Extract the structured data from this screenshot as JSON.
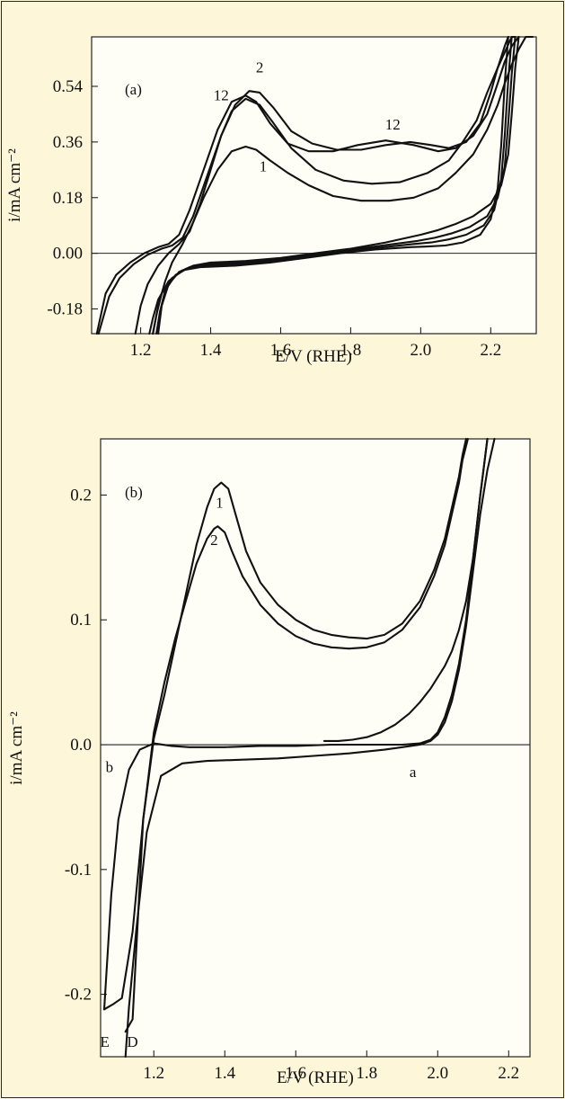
{
  "chart_data": [
    {
      "type": "line",
      "panel_label": "(a)",
      "xlabel": "E/V (RHE)",
      "ylabel": "i/mA cm⁻²",
      "xlim": [
        1.06,
        2.33
      ],
      "ylim": [
        -0.26,
        0.7
      ],
      "xticks": [
        1.2,
        1.4,
        1.6,
        1.8,
        2.0,
        2.2
      ],
      "xtick_labels": [
        "1.2",
        "1.4",
        "1.6",
        "1.8",
        "2.0",
        "2.2"
      ],
      "yticks": [
        -0.18,
        0.0,
        0.18,
        0.36,
        0.54
      ],
      "ytick_labels": [
        "-0.18",
        "0.00",
        "0.18",
        "0.36",
        "0.54"
      ],
      "zero_line": 0.0,
      "annotations": [
        {
          "text": "2",
          "x": 1.54,
          "y": 0.585
        },
        {
          "text": "12",
          "x": 1.43,
          "y": 0.495
        },
        {
          "text": "12",
          "x": 1.92,
          "y": 0.4
        },
        {
          "text": "1",
          "x": 1.55,
          "y": 0.265
        }
      ],
      "series": [
        {
          "x": [
            1.075,
            1.1,
            1.13,
            1.17,
            1.21,
            1.25,
            1.28,
            1.31,
            1.34,
            1.38,
            1.42,
            1.46,
            1.5,
            1.53,
            1.57,
            1.62,
            1.68,
            1.75,
            1.82,
            1.9,
            1.98,
            2.05,
            2.1,
            2.15,
            2.19,
            2.22,
            2.24,
            2.26,
            2.28
          ],
          "y": [
            -0.26,
            -0.13,
            -0.07,
            -0.03,
            0.0,
            0.02,
            0.03,
            0.06,
            0.14,
            0.27,
            0.4,
            0.49,
            0.51,
            0.49,
            0.42,
            0.355,
            0.33,
            0.33,
            0.35,
            0.365,
            0.35,
            0.33,
            0.34,
            0.38,
            0.45,
            0.55,
            0.62,
            0.67,
            0.72
          ]
        },
        {
          "x": [
            1.08,
            1.11,
            1.14,
            1.18,
            1.22,
            1.26,
            1.29,
            1.32,
            1.35,
            1.39,
            1.43,
            1.47,
            1.51,
            1.54,
            1.58,
            1.63,
            1.69,
            1.76,
            1.83,
            1.9,
            1.97,
            2.03,
            2.08,
            2.13,
            2.17,
            2.2,
            2.22,
            2.24,
            2.25
          ],
          "y": [
            -0.26,
            -0.14,
            -0.08,
            -0.035,
            -0.005,
            0.015,
            0.025,
            0.05,
            0.12,
            0.25,
            0.38,
            0.48,
            0.525,
            0.52,
            0.47,
            0.395,
            0.355,
            0.335,
            0.335,
            0.35,
            0.36,
            0.35,
            0.34,
            0.36,
            0.42,
            0.52,
            0.6,
            0.67,
            0.72
          ]
        },
        {
          "x": [
            1.185,
            1.2,
            1.22,
            1.25,
            1.28,
            1.31,
            1.34,
            1.37,
            1.4,
            1.43,
            1.46,
            1.5,
            1.54,
            1.58,
            1.63,
            1.7,
            1.78,
            1.86,
            1.94,
            2.02,
            2.08,
            2.12,
            2.16,
            2.19,
            2.22,
            2.24,
            2.26,
            2.27
          ],
          "y": [
            -0.26,
            -0.17,
            -0.1,
            -0.04,
            0.0,
            0.03,
            0.07,
            0.16,
            0.27,
            0.38,
            0.46,
            0.5,
            0.48,
            0.42,
            0.34,
            0.27,
            0.235,
            0.225,
            0.23,
            0.26,
            0.3,
            0.36,
            0.43,
            0.52,
            0.6,
            0.65,
            0.7,
            0.72
          ]
        },
        {
          "x": [
            1.235,
            1.25,
            1.27,
            1.29,
            1.32,
            1.35,
            1.38,
            1.42,
            1.46,
            1.5,
            1.53,
            1.57,
            1.62,
            1.68,
            1.75,
            1.83,
            1.91,
            1.98,
            2.05,
            2.1,
            2.15,
            2.19,
            2.22,
            2.24,
            2.26,
            2.28,
            2.3,
            2.32
          ],
          "y": [
            -0.26,
            -0.17,
            -0.09,
            -0.03,
            0.03,
            0.1,
            0.18,
            0.27,
            0.33,
            0.345,
            0.335,
            0.3,
            0.26,
            0.22,
            0.185,
            0.17,
            0.17,
            0.18,
            0.21,
            0.26,
            0.32,
            0.4,
            0.48,
            0.55,
            0.61,
            0.66,
            0.7,
            0.72
          ]
        },
        {
          "x": [
            2.28,
            2.27,
            2.26,
            2.25,
            2.23,
            2.2,
            2.15,
            2.1,
            2.05,
            2.0,
            1.9,
            1.8,
            1.7,
            1.6,
            1.5,
            1.4,
            1.35,
            1.31,
            1.28,
            1.26,
            1.25
          ],
          "y": [
            0.72,
            0.6,
            0.45,
            0.32,
            0.22,
            0.16,
            0.12,
            0.095,
            0.075,
            0.06,
            0.035,
            0.015,
            0.0,
            -0.015,
            -0.025,
            -0.03,
            -0.04,
            -0.06,
            -0.1,
            -0.17,
            -0.26
          ]
        },
        {
          "x": [
            2.27,
            2.26,
            2.25,
            2.24,
            2.22,
            2.19,
            2.14,
            2.09,
            2.04,
            1.99,
            1.89,
            1.79,
            1.69,
            1.59,
            1.49,
            1.39,
            1.34,
            1.3,
            1.27,
            1.255,
            1.245
          ],
          "y": [
            0.72,
            0.58,
            0.42,
            0.28,
            0.18,
            0.12,
            0.085,
            0.065,
            0.05,
            0.04,
            0.025,
            0.01,
            -0.005,
            -0.02,
            -0.03,
            -0.035,
            -0.045,
            -0.07,
            -0.12,
            -0.19,
            -0.26
          ]
        },
        {
          "x": [
            2.26,
            2.25,
            2.24,
            2.23,
            2.21,
            2.18,
            2.13,
            2.08,
            2.03,
            1.98,
            1.88,
            1.78,
            1.68,
            1.58,
            1.48,
            1.38,
            1.33,
            1.29,
            1.26,
            1.245,
            1.235
          ],
          "y": [
            0.72,
            0.56,
            0.38,
            0.24,
            0.14,
            0.09,
            0.06,
            0.045,
            0.035,
            0.03,
            0.018,
            0.005,
            -0.01,
            -0.025,
            -0.035,
            -0.04,
            -0.05,
            -0.08,
            -0.13,
            -0.2,
            -0.26
          ]
        },
        {
          "x": [
            2.25,
            2.24,
            2.23,
            2.22,
            2.2,
            2.17,
            2.12,
            2.07,
            2.02,
            1.97,
            1.87,
            1.77,
            1.67,
            1.57,
            1.47,
            1.37,
            1.32,
            1.28,
            1.25,
            1.235,
            1.225
          ],
          "y": [
            0.72,
            0.55,
            0.35,
            0.21,
            0.11,
            0.06,
            0.035,
            0.025,
            0.022,
            0.02,
            0.012,
            0.0,
            -0.015,
            -0.03,
            -0.04,
            -0.045,
            -0.055,
            -0.09,
            -0.15,
            -0.21,
            -0.26
          ]
        }
      ]
    },
    {
      "type": "line",
      "panel_label": "(b)",
      "xlabel": "E/V (RHE)",
      "ylabel": "i/mA cm⁻²",
      "xlim": [
        1.05,
        2.26
      ],
      "ylim": [
        -0.25,
        0.245
      ],
      "xticks": [
        1.2,
        1.4,
        1.6,
        1.8,
        2.0,
        2.2
      ],
      "xtick_labels": [
        "1.2",
        "1.4",
        "1.6",
        "1.8",
        "2.0",
        "2.2"
      ],
      "yticks": [
        -0.2,
        -0.1,
        0.0,
        0.1,
        0.2
      ],
      "ytick_labels": [
        "-0.2",
        "-0.1",
        "0.0",
        "0.1",
        "0.2"
      ],
      "zero_line": 0.0,
      "annotations": [
        {
          "text": "1",
          "x": 1.385,
          "y": 0.19
        },
        {
          "text": "2",
          "x": 1.37,
          "y": 0.16
        },
        {
          "text": "b",
          "x": 1.075,
          "y": -0.022
        },
        {
          "text": "a",
          "x": 1.93,
          "y": -0.026
        },
        {
          "text": "E",
          "x": 1.062,
          "y": -0.242
        },
        {
          "text": "D",
          "x": 1.14,
          "y": -0.242
        }
      ],
      "series": [
        {
          "x": [
            1.06,
            1.085,
            1.11,
            1.14,
            1.17,
            1.2,
            1.23,
            1.26,
            1.29,
            1.32,
            1.35,
            1.37,
            1.39,
            1.41,
            1.43,
            1.46,
            1.5,
            1.55,
            1.6,
            1.65,
            1.7,
            1.75,
            1.8,
            1.85,
            1.9,
            1.95,
            1.99,
            2.02,
            2.04,
            2.06,
            2.07,
            2.08
          ],
          "y": [
            -0.212,
            -0.208,
            -0.203,
            -0.15,
            -0.06,
            0.005,
            0.04,
            0.08,
            0.12,
            0.16,
            0.19,
            0.205,
            0.21,
            0.205,
            0.185,
            0.155,
            0.13,
            0.112,
            0.1,
            0.092,
            0.088,
            0.086,
            0.085,
            0.088,
            0.097,
            0.115,
            0.14,
            0.165,
            0.19,
            0.215,
            0.232,
            0.248
          ]
        },
        {
          "x": [
            1.12,
            1.14,
            1.17,
            1.2,
            1.23,
            1.26,
            1.29,
            1.32,
            1.35,
            1.37,
            1.38,
            1.4,
            1.42,
            1.45,
            1.5,
            1.55,
            1.6,
            1.65,
            1.7,
            1.75,
            1.8,
            1.85,
            1.9,
            1.95,
            1.99,
            2.02,
            2.04,
            2.06,
            2.07,
            2.085
          ],
          "y": [
            -0.23,
            -0.22,
            -0.06,
            0.01,
            0.05,
            0.085,
            0.115,
            0.145,
            0.165,
            0.173,
            0.175,
            0.17,
            0.155,
            0.135,
            0.112,
            0.097,
            0.087,
            0.081,
            0.078,
            0.077,
            0.078,
            0.082,
            0.092,
            0.11,
            0.135,
            0.16,
            0.185,
            0.21,
            0.228,
            0.248
          ]
        },
        {
          "x": [
            1.06,
            1.08,
            1.1,
            1.13,
            1.16,
            1.2,
            1.25,
            1.3,
            1.4,
            1.5,
            1.6,
            1.7,
            1.8,
            1.9,
            1.95,
            1.98,
            2.0,
            2.02,
            2.04,
            2.06,
            2.08,
            2.1,
            2.12,
            2.14
          ],
          "y": [
            -0.212,
            -0.12,
            -0.06,
            -0.02,
            -0.004,
            0.001,
            -0.001,
            -0.002,
            -0.002,
            -0.001,
            -0.001,
            0.0,
            0.0,
            0.0,
            0.001,
            0.004,
            0.01,
            0.022,
            0.04,
            0.065,
            0.1,
            0.15,
            0.2,
            0.248
          ]
        },
        {
          "x": [
            1.12,
            1.13,
            1.15,
            1.18,
            1.22,
            1.28,
            1.35,
            1.45,
            1.55,
            1.65,
            1.75,
            1.85,
            1.9,
            1.95,
            1.98,
            2.0,
            2.02,
            2.04,
            2.06,
            2.08,
            2.1,
            2.12,
            2.14,
            2.16
          ],
          "y": [
            -0.255,
            -0.21,
            -0.15,
            -0.07,
            -0.025,
            -0.015,
            -0.013,
            -0.012,
            -0.011,
            -0.009,
            -0.007,
            -0.004,
            -0.002,
            0.0,
            0.003,
            0.008,
            0.018,
            0.035,
            0.06,
            0.095,
            0.14,
            0.185,
            0.22,
            0.248
          ]
        },
        {
          "x": [
            1.68,
            1.72,
            1.76,
            1.8,
            1.84,
            1.88,
            1.92,
            1.95,
            1.98,
            2.0,
            2.02,
            2.04,
            2.06,
            2.08,
            2.1,
            2.12,
            2.14
          ],
          "y": [
            0.003,
            0.003,
            0.004,
            0.006,
            0.01,
            0.016,
            0.025,
            0.034,
            0.045,
            0.054,
            0.063,
            0.075,
            0.092,
            0.115,
            0.15,
            0.2,
            0.248
          ]
        }
      ]
    }
  ]
}
